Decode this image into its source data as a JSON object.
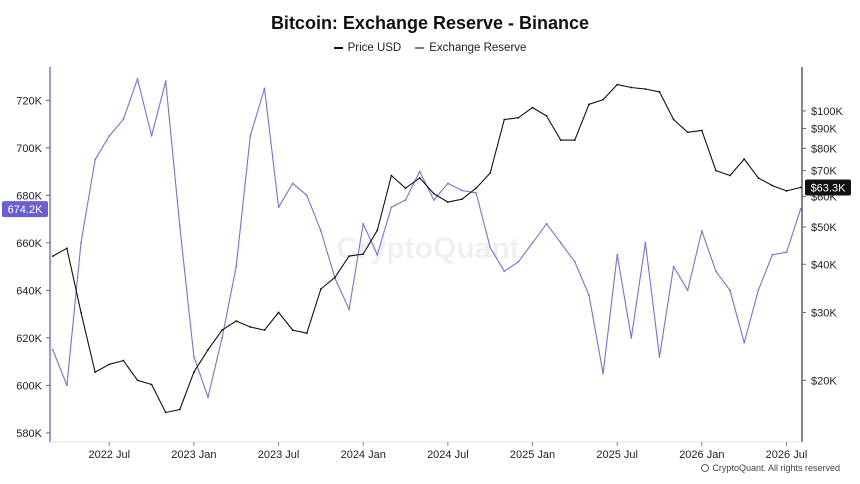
{
  "chart_data": {
    "type": "line",
    "title": "Bitcoin: Exchange Reserve - Binance",
    "xlabel": "",
    "ylabel": "",
    "legend_position": "top-center",
    "grid": false,
    "x_ticks": [
      "2022 Jul",
      "2023 Jan",
      "2023 Jul",
      "2024 Jan",
      "2024 Jul",
      "2025 Jan",
      "2025 Jul",
      "2026 Jan",
      "2026 Jul"
    ],
    "x": [
      "2022-03",
      "2022-04",
      "2022-05",
      "2022-06",
      "2022-07",
      "2022-08",
      "2022-09",
      "2022-10",
      "2022-11",
      "2022-12",
      "2023-01",
      "2023-02",
      "2023-03",
      "2023-04",
      "2023-05",
      "2023-06",
      "2023-07",
      "2023-08",
      "2023-09",
      "2023-10",
      "2023-11",
      "2023-12",
      "2024-01",
      "2024-02",
      "2024-03",
      "2024-04",
      "2024-05",
      "2024-06",
      "2024-07",
      "2024-08",
      "2024-09",
      "2024-10",
      "2024-11",
      "2024-12",
      "2025-01",
      "2025-02",
      "2025-03",
      "2025-04",
      "2025-05",
      "2025-06",
      "2025-07",
      "2025-08",
      "2025-09",
      "2025-10",
      "2025-11",
      "2025-12",
      "2026-01",
      "2026-02",
      "2026-03",
      "2026-04",
      "2026-05",
      "2026-06",
      "2026-07",
      "2026-08"
    ],
    "left_axis": {
      "ticks": [
        "580K",
        "600K",
        "620K",
        "640K",
        "660K",
        "680K",
        "700K",
        "720K"
      ],
      "tick_values": [
        580000,
        600000,
        620000,
        640000,
        660000,
        680000,
        700000,
        720000
      ],
      "range": [
        577000,
        734000
      ]
    },
    "right_axis": {
      "ticks": [
        "$20K",
        "$30K",
        "$40K",
        "$50K",
        "$60K",
        "$70K",
        "$80K",
        "$90K",
        "$100K"
      ],
      "tick_values": [
        20000,
        30000,
        40000,
        50000,
        60000,
        70000,
        80000,
        90000,
        100000
      ],
      "scale": "log",
      "range": [
        14000,
        130000
      ]
    },
    "series": [
      {
        "name": "Exchange Reserve",
        "axis": "left",
        "color": "#7b6fd8",
        "values": [
          615000,
          600000,
          660000,
          695000,
          705000,
          712000,
          729000,
          705000,
          728000,
          667000,
          612000,
          595000,
          620000,
          650000,
          705000,
          725000,
          675000,
          685000,
          680000,
          665000,
          645000,
          632000,
          668000,
          655000,
          675000,
          678000,
          690000,
          678000,
          685000,
          682000,
          681000,
          658000,
          648000,
          652000,
          660000,
          668000,
          660000,
          652000,
          638000,
          605000,
          655000,
          620000,
          660000,
          612000,
          650000,
          640000,
          665000,
          648000,
          640000,
          618000,
          640000,
          655000,
          656000,
          674200
        ],
        "last_value_label": "674.2K"
      },
      {
        "name": "Price USD",
        "axis": "right",
        "color": "#111111",
        "values": [
          42000,
          44000,
          30000,
          21000,
          22000,
          22500,
          20000,
          19500,
          16500,
          16800,
          21000,
          24000,
          27000,
          28500,
          27500,
          27000,
          30000,
          27000,
          26500,
          34500,
          37000,
          42000,
          42500,
          49000,
          68000,
          63000,
          67000,
          61000,
          58000,
          59000,
          63000,
          69000,
          95000,
          96000,
          102000,
          97000,
          84000,
          84000,
          104000,
          107000,
          117000,
          115000,
          114000,
          112000,
          95000,
          88000,
          89000,
          70000,
          68000,
          75000,
          67000,
          64000,
          62000,
          63300
        ],
        "last_value_label": "$63.3K"
      }
    ],
    "watermark": "CryptoQuant",
    "footer": "CryptoQuant. All rights reserved"
  }
}
